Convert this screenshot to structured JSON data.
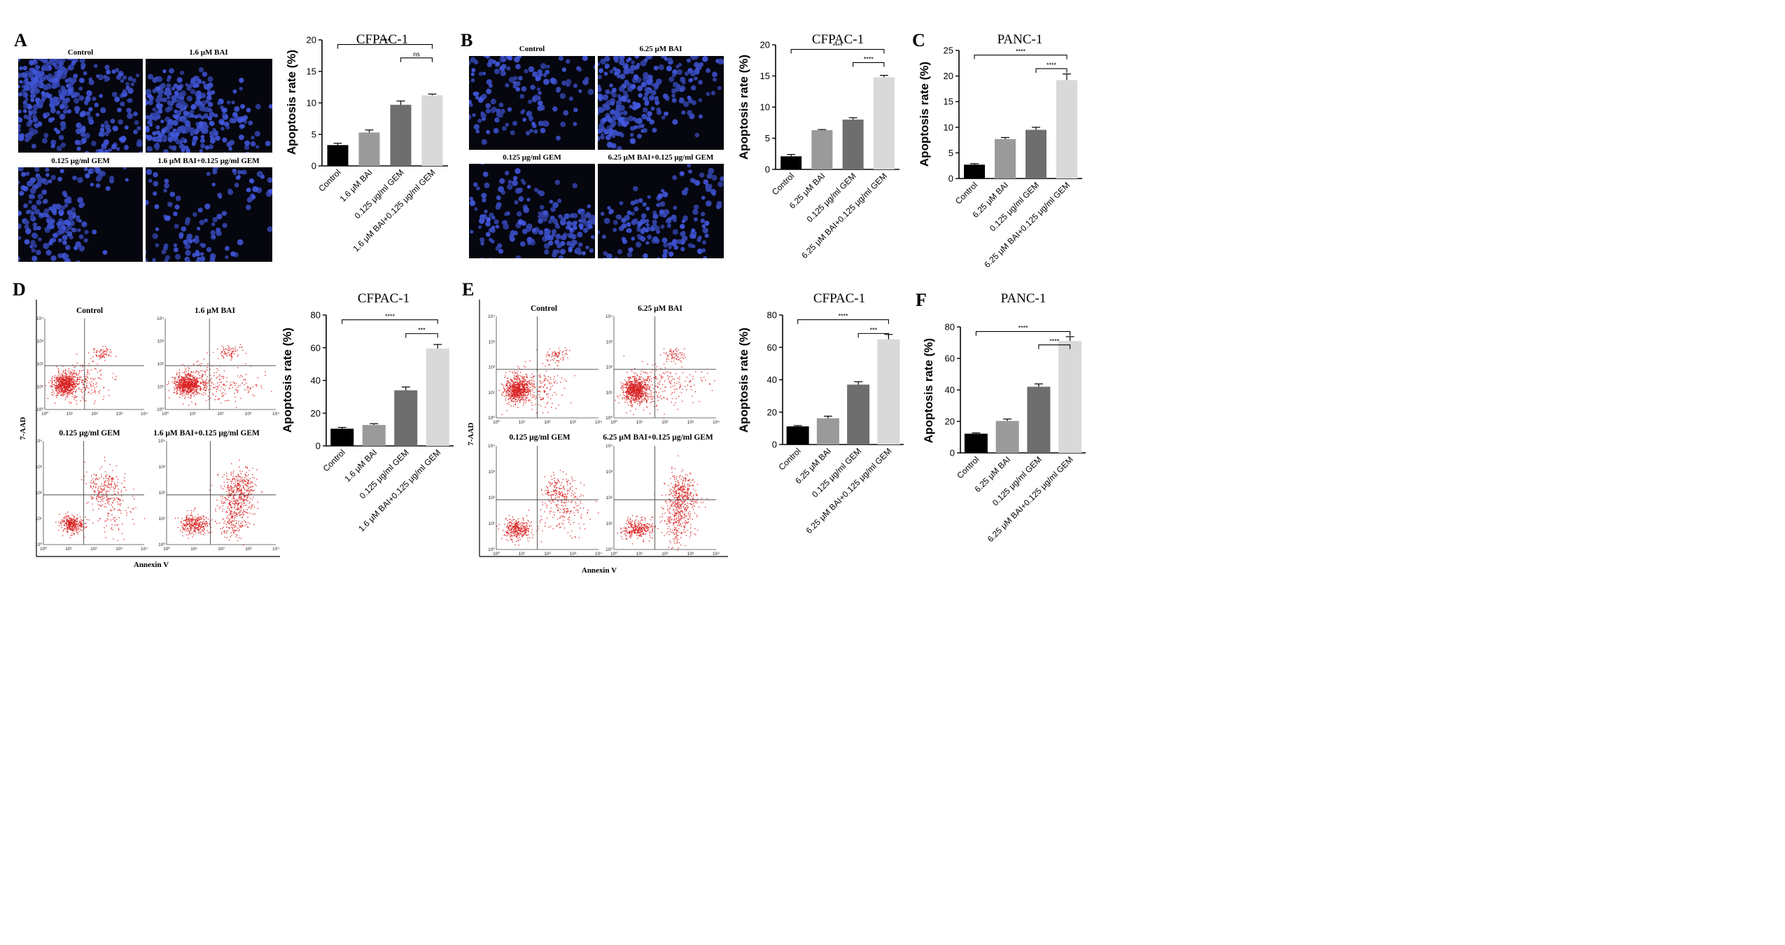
{
  "panel_letters": [
    "A",
    "B",
    "C",
    "D",
    "E",
    "F"
  ],
  "image_panels": [
    {
      "panel": "A",
      "labels": [
        "Control",
        "1.6 μM BAI",
        "0.125 μg/ml GEM",
        "1.6 μM BAI+0.125 μg/ml GEM"
      ]
    },
    {
      "panel": "B",
      "labels": [
        "Control",
        "6.25 μM BAI",
        "0.125 μg/ml GEM",
        "6.25 μM BAI+0.125 μg/ml GEM"
      ]
    }
  ],
  "flow_panels": [
    {
      "panel": "D",
      "labels": [
        "Control",
        "1.6 μM BAI",
        "0.125 μg/ml GEM",
        "1.6 μM BAI+0.125 μg/ml GEM"
      ],
      "xlabel": "Annexin V",
      "ylabel": "7-AAD"
    },
    {
      "panel": "E",
      "labels": [
        "Control",
        "6.25 μM BAI",
        "0.125 μg/ml GEM",
        "6.25 μM BAI+0.125 μg/ml GEM"
      ],
      "xlabel": "Annexin V",
      "ylabel": "7-AAD"
    }
  ],
  "flow_ticks": [
    "10⁰",
    "10¹",
    "10²",
    "10³",
    "10⁴"
  ],
  "colors": {
    "nuclei": "#3a50c8",
    "dots": "#d82020",
    "bars": [
      "#000000",
      "#9a9a9a",
      "#6e6e6e",
      "#d9d9d9"
    ]
  },
  "chart_data": [
    {
      "panel": "A",
      "type": "bar",
      "title": "CFPAC-1",
      "ylabel": "Apoptosis rate (%)",
      "ylim": [
        0,
        20
      ],
      "yticks": [
        0,
        5,
        10,
        15,
        20
      ],
      "categories": [
        "Control",
        "1.6 μM BAI",
        "0.125 μg/ml GEM",
        "1.6 μM BAI+0.125 μg/ml GEM"
      ],
      "values": [
        3.3,
        5.3,
        9.7,
        11.2
      ],
      "errors": [
        0.3,
        0.4,
        0.6,
        0.2
      ],
      "significance": [
        {
          "from": 0,
          "to": 3,
          "label": "****"
        },
        {
          "from": 2,
          "to": 3,
          "label": "ns"
        }
      ]
    },
    {
      "panel": "B",
      "type": "bar",
      "title": "CFPAC-1",
      "ylabel": "Apoptosis rate (%)",
      "ylim": [
        0,
        20
      ],
      "yticks": [
        0,
        5,
        10,
        15,
        20
      ],
      "categories": [
        "Control",
        "6.25 μM BAI",
        "0.125 μg/ml GEM",
        "6.25 μM BAI+0.125 μg/ml GEM"
      ],
      "values": [
        2.1,
        6.3,
        8.0,
        14.8
      ],
      "errors": [
        0.3,
        0.1,
        0.3,
        0.3
      ],
      "significance": [
        {
          "from": 0,
          "to": 3,
          "label": "****"
        },
        {
          "from": 2,
          "to": 3,
          "label": "****"
        }
      ]
    },
    {
      "panel": "C",
      "type": "bar",
      "title": "PANC-1",
      "ylabel": "Apoptosis rate (%)",
      "ylim": [
        0,
        25
      ],
      "yticks": [
        0,
        5,
        10,
        15,
        20,
        25
      ],
      "categories": [
        "Control",
        "6.25 μM BAI",
        "0.125 μg/ml GEM",
        "6.25 μM BAI+0.125 μg/ml GEM"
      ],
      "values": [
        2.7,
        7.7,
        9.5,
        19.2
      ],
      "errors": [
        0.2,
        0.3,
        0.5,
        1.2
      ],
      "significance": [
        {
          "from": 0,
          "to": 3,
          "label": "****"
        },
        {
          "from": 2,
          "to": 3,
          "label": "****"
        }
      ]
    },
    {
      "panel": "D",
      "type": "bar",
      "title": "CFPAC-1",
      "ylabel": "Apoptosis rate (%)",
      "ylim": [
        0,
        80
      ],
      "yticks": [
        0,
        20,
        40,
        60,
        80
      ],
      "categories": [
        "Control",
        "1.6 μM BAI",
        "0.125 μg/ml GEM",
        "1.6 μM BAI+0.125 μg/ml GEM"
      ],
      "values": [
        10.5,
        12.8,
        34.0,
        59.5
      ],
      "errors": [
        0.8,
        0.8,
        2.0,
        2.5
      ],
      "significance": [
        {
          "from": 0,
          "to": 3,
          "label": "****"
        },
        {
          "from": 2,
          "to": 3,
          "label": "***"
        }
      ]
    },
    {
      "panel": "E",
      "type": "bar",
      "title": "CFPAC-1",
      "ylabel": "Apoptosis rate (%)",
      "ylim": [
        0,
        80
      ],
      "yticks": [
        0,
        20,
        40,
        60,
        80
      ],
      "categories": [
        "Control",
        "6.25 μM BAI",
        "0.125 μg/ml GEM",
        "6.25 μM BAI+0.125 μg/ml GEM"
      ],
      "values": [
        11.2,
        16.2,
        37.0,
        65.0
      ],
      "errors": [
        0.5,
        1.3,
        1.8,
        3.0
      ],
      "significance": [
        {
          "from": 0,
          "to": 3,
          "label": "****"
        },
        {
          "from": 2,
          "to": 3,
          "label": "***"
        }
      ]
    },
    {
      "panel": "F",
      "type": "bar",
      "title": "PANC-1",
      "ylabel": "Apoptosis rate (%)",
      "ylim": [
        0,
        80
      ],
      "yticks": [
        0,
        20,
        40,
        60,
        80
      ],
      "categories": [
        "Control",
        "6.25 μM BAI",
        "0.125 μg/ml GEM",
        "6.25 μM BAI+0.125 μg/ml GEM"
      ],
      "values": [
        12.2,
        20.3,
        42.0,
        71.0
      ],
      "errors": [
        0.5,
        1.2,
        1.8,
        2.8
      ],
      "significance": [
        {
          "from": 0,
          "to": 3,
          "label": "****"
        },
        {
          "from": 2,
          "to": 3,
          "label": "****"
        }
      ]
    }
  ]
}
